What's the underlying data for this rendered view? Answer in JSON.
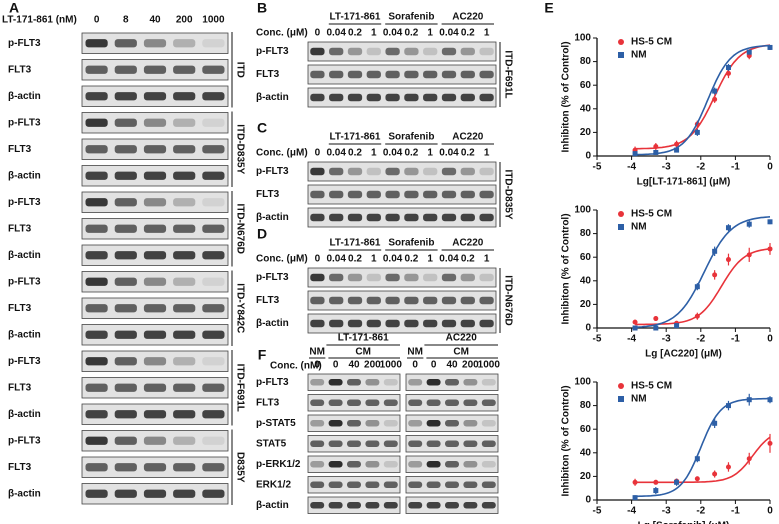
{
  "panels": {
    "A": {
      "label": "A",
      "dose_title": "LT-171-861 (nM)",
      "doses": [
        "0",
        "8",
        "40",
        "200",
        "1000"
      ],
      "groups": [
        {
          "rows": [
            "p-FLT3",
            "FLT3",
            "β-actin"
          ],
          "tag": "ITD"
        },
        {
          "rows": [
            "p-FLT3",
            "FLT3",
            "β-actin"
          ],
          "tag": "ITD-D835Y"
        },
        {
          "rows": [
            "p-FLT3",
            "FLT3",
            "β-actin"
          ],
          "tag": "ITD-N676D"
        },
        {
          "rows": [
            "p-FLT3",
            "FLT3",
            "β-actin"
          ],
          "tag": "ITD-Y842C"
        },
        {
          "rows": [
            "p-FLT3",
            "FLT3",
            "β-actin"
          ],
          "tag": "ITD-F691L"
        },
        {
          "rows": [
            "p-FLT3",
            "FLT3",
            "β-actin"
          ],
          "tag": "D835Y"
        }
      ]
    },
    "B": {
      "label": "B",
      "conc_title": "Conc. (μM)",
      "drugs": [
        "LT-171-861",
        "Sorafenib",
        "AC220"
      ],
      "concs": [
        "0",
        "0.04",
        "0.2",
        "1",
        "0.04",
        "0.2",
        "1",
        "0.04",
        "0.2",
        "1"
      ],
      "rows": [
        "p-FLT3",
        "FLT3",
        "β-actin"
      ],
      "tag": "ITD-F691L"
    },
    "C": {
      "label": "C",
      "conc_title": "Conc. (μM)",
      "drugs": [
        "LT-171-861",
        "Sorafenib",
        "AC220"
      ],
      "concs": [
        "0",
        "0.04",
        "0.2",
        "1",
        "0.04",
        "0.2",
        "1",
        "0.04",
        "0.2",
        "1"
      ],
      "rows": [
        "p-FLT3",
        "FLT3",
        "β-actin"
      ],
      "tag": "ITD-D835Y"
    },
    "D": {
      "label": "D",
      "conc_title": "Conc. (μM)",
      "drugs": [
        "LT-171-861",
        "Sorafenib",
        "AC220"
      ],
      "concs": [
        "0",
        "0.04",
        "0.2",
        "1",
        "0.04",
        "0.2",
        "1",
        "0.04",
        "0.2",
        "1"
      ],
      "rows": [
        "p-FLT3",
        "FLT3",
        "β-actin"
      ],
      "tag": "ITD-N676D"
    },
    "F": {
      "label": "F",
      "conc_title": "Conc. (nM)",
      "sides": [
        {
          "drug": "LT-171-861",
          "groups": [
            "NM",
            "CM"
          ],
          "concs": [
            "0",
            "0",
            "40",
            "200",
            "1000"
          ]
        },
        {
          "drug": "AC220",
          "groups": [
            "NM",
            "CM"
          ],
          "concs": [
            "0",
            "0",
            "40",
            "200",
            "1000"
          ]
        }
      ],
      "rows": [
        "p-FLT3",
        "FLT3",
        "p-STAT5",
        "STAT5",
        "p-ERK1/2",
        "ERK1/2",
        "β-actin"
      ]
    },
    "E": {
      "label": "E"
    }
  },
  "chart_data": [
    {
      "type": "scatter",
      "xlabel": "Lg[LT-171-861] (μM)",
      "ylabel": "Inhibiton (% of Control)",
      "x": [
        -3.9,
        -3.3,
        -2.7,
        -2.1,
        -1.6,
        -1.2,
        -0.6,
        0
      ],
      "xlim": [
        -5,
        0
      ],
      "xticks": [
        -5,
        -4,
        -3,
        -2,
        -1,
        0
      ],
      "ylim": [
        0,
        100
      ],
      "yticks": [
        0,
        20,
        40,
        60,
        80,
        100
      ],
      "legend": "upper left",
      "series": [
        {
          "name": "HS-5 CM",
          "color": "#e8333a",
          "marker": "circle",
          "values": [
            5,
            8,
            10,
            27,
            48,
            70,
            85,
            92
          ],
          "errors": [
            3,
            3,
            3,
            3,
            3,
            4,
            3,
            2
          ],
          "fit": {
            "bottom": 6,
            "top": 95,
            "logIC50": -1.6,
            "hill": 1.2
          }
        },
        {
          "name": "NM",
          "color": "#2d5fa6",
          "marker": "square",
          "values": [
            2,
            3,
            5,
            20,
            55,
            75,
            88,
            92
          ],
          "errors": [
            2,
            2,
            2,
            3,
            3,
            3,
            2,
            2
          ],
          "fit": {
            "bottom": 1,
            "top": 94,
            "logIC50": -1.8,
            "hill": 1.3
          }
        }
      ]
    },
    {
      "type": "scatter",
      "xlabel": "Lg [AC220] (μM)",
      "ylabel": "Inhibiton (% of Control)",
      "x": [
        -3.9,
        -3.3,
        -2.7,
        -2.1,
        -1.6,
        -1.2,
        -0.6,
        0
      ],
      "xlim": [
        -5,
        0
      ],
      "xticks": [
        -5,
        -4,
        -3,
        -2,
        -1,
        0
      ],
      "ylim": [
        0,
        100
      ],
      "yticks": [
        0,
        20,
        40,
        60,
        80,
        100
      ],
      "legend": "upper left",
      "series": [
        {
          "name": "HS-5 CM",
          "color": "#e8333a",
          "marker": "circle",
          "values": [
            5,
            8,
            4,
            10,
            45,
            58,
            62,
            67
          ],
          "errors": [
            2,
            2,
            2,
            3,
            4,
            5,
            6,
            5
          ],
          "fit": {
            "bottom": 3,
            "top": 68,
            "logIC50": -1.4,
            "hill": 1.3
          }
        },
        {
          "name": "NM",
          "color": "#2d5fa6",
          "marker": "square",
          "values": [
            0,
            0,
            2,
            35,
            65,
            85,
            88,
            90
          ],
          "errors": [
            1,
            1,
            2,
            3,
            4,
            3,
            3,
            2
          ],
          "fit": {
            "bottom": 0,
            "top": 95,
            "logIC50": -1.9,
            "hill": 1.1
          }
        }
      ]
    },
    {
      "type": "scatter",
      "xlabel": "Lg [Sorafenib] (μM)",
      "ylabel": "Inhibiton (% of Control)",
      "x": [
        -3.9,
        -3.3,
        -2.7,
        -2.1,
        -1.6,
        -1.2,
        -0.6,
        0
      ],
      "xlim": [
        -5,
        0
      ],
      "xticks": [
        -5,
        -4,
        -3,
        -2,
        -1,
        0
      ],
      "ylim": [
        0,
        100
      ],
      "yticks": [
        0,
        20,
        40,
        60,
        80,
        100
      ],
      "legend": "upper left",
      "series": [
        {
          "name": "HS-5 CM",
          "color": "#e8333a",
          "marker": "circle",
          "values": [
            15,
            15,
            16,
            18,
            22,
            28,
            35,
            48
          ],
          "errors": [
            3,
            2,
            2,
            2,
            3,
            4,
            5,
            8
          ],
          "fit": {
            "bottom": 15,
            "top": 60,
            "logIC50": -0.5,
            "hill": 1.5
          }
        },
        {
          "name": "NM",
          "color": "#2d5fa6",
          "marker": "square",
          "values": [
            2,
            8,
            15,
            35,
            65,
            80,
            85,
            85
          ],
          "errors": [
            2,
            3,
            3,
            3,
            4,
            4,
            5,
            3
          ],
          "fit": {
            "bottom": 3,
            "top": 86,
            "logIC50": -2.0,
            "hill": 1.5
          }
        }
      ]
    }
  ]
}
